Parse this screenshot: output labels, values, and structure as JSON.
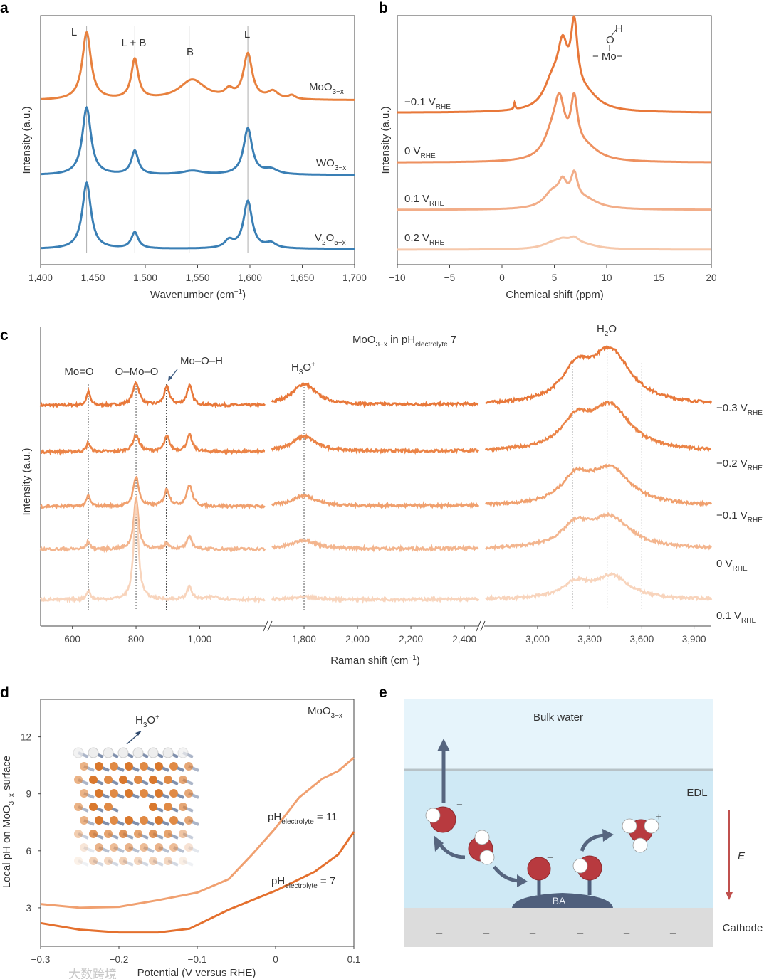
{
  "panels": {
    "a": "a",
    "b": "b",
    "c": "c",
    "d": "d",
    "e": "e"
  },
  "watermark": "大数跨境",
  "chart_data": [
    {
      "type": "line",
      "panel": "a",
      "xlabel": {
        "main": "Wavenumber (cm",
        "sup": "−1",
        "tail": ")"
      },
      "ylabel": "Intensity (a.u.)",
      "xlim": [
        1400,
        1700
      ],
      "xticks": [
        1400,
        1450,
        1500,
        1550,
        1600,
        1650,
        1700
      ],
      "xtick_labels": [
        "1,400",
        "1,450",
        "1,500",
        "1,550",
        "1,600",
        "1,650",
        "1,700"
      ],
      "guides": [
        1444,
        1490,
        1542,
        1598
      ],
      "peak_labels": [
        {
          "text": "L",
          "x": 1440
        },
        {
          "text": "L + B",
          "x": 1490
        },
        {
          "text": "B",
          "x": 1545
        },
        {
          "text": "L",
          "x": 1598
        }
      ],
      "series": [
        {
          "name": "MoO3-x",
          "label": {
            "main": "MoO",
            "sub": "3−x"
          },
          "color": "#e8813e",
          "baseline": 6.6,
          "peaks": [
            [
              1444,
              2.7,
              5
            ],
            [
              1490,
              1.6,
              4
            ],
            [
              1545,
              0.8,
              15
            ],
            [
              1580,
              0.3,
              5
            ],
            [
              1598,
              1.8,
              5
            ],
            [
              1622,
              0.3,
              6
            ],
            [
              1640,
              0.15,
              4
            ]
          ]
        },
        {
          "name": "WO3-x",
          "label": {
            "main": "WO",
            "sub": "3−x"
          },
          "color": "#3a7fb5",
          "baseline": 3.6,
          "peaks": [
            [
              1444,
              2.7,
              5
            ],
            [
              1490,
              0.95,
              4
            ],
            [
              1545,
              0.15,
              12
            ],
            [
              1598,
              1.85,
              5
            ],
            [
              1620,
              0.2,
              8
            ]
          ]
        },
        {
          "name": "V2O5-x",
          "label": {
            "main": "V",
            "sub1": "2",
            "main2": "O",
            "sub": "5−x"
          },
          "color": "#3a7fb5",
          "baseline": 0.63,
          "peaks": [
            [
              1444,
              2.65,
              5
            ],
            [
              1490,
              0.65,
              4
            ],
            [
              1580,
              0.3,
              5
            ],
            [
              1598,
              1.9,
              5
            ],
            [
              1620,
              0.2,
              6
            ]
          ]
        }
      ]
    },
    {
      "type": "line",
      "panel": "b",
      "xlabel": "Chemical shift (ppm)",
      "ylabel": "Intensity (a.u.)",
      "xlim": [
        -10,
        20
      ],
      "xticks": [
        -10,
        -5,
        0,
        5,
        10,
        15,
        20
      ],
      "xtick_labels": [
        "−10",
        "−5",
        "0",
        "5",
        "10",
        "15",
        "20"
      ],
      "inset": {
        "h": "H",
        "o": "O",
        "mo": "− Mo−"
      },
      "series": [
        {
          "name": "-0.1 V_RHE",
          "label": {
            "main": "−0.1 V",
            "sub": "RHE"
          },
          "color": "#e8783a",
          "baseline": 6.1,
          "peaks": [
            [
              5.8,
              2.1,
              0.6
            ],
            [
              6.9,
              2.8,
              0.4
            ],
            [
              4.8,
              1.0,
              1.0
            ],
            [
              8,
              0.6,
              1.5
            ],
            [
              1.2,
              0.25,
              0.08
            ]
          ]
        },
        {
          "name": "0 V_RHE",
          "label": {
            "main": "0 V",
            "sub": "RHE"
          },
          "color": "#ee9160",
          "baseline": 4.1,
          "peaks": [
            [
              5.5,
              1.9,
              0.6
            ],
            [
              6.9,
              2.0,
              0.4
            ],
            [
              4.8,
              0.9,
              1.0
            ],
            [
              8,
              0.5,
              1.5
            ]
          ]
        },
        {
          "name": "0.1 V_RHE",
          "label": {
            "main": "0.1 V",
            "sub": "RHE"
          },
          "color": "#f2ad88",
          "baseline": 2.2,
          "peaks": [
            [
              5.8,
              0.8,
              0.5
            ],
            [
              6.9,
              1.1,
              0.4
            ],
            [
              4.8,
              0.6,
              1.0
            ],
            [
              8,
              0.35,
              1.5
            ]
          ]
        },
        {
          "name": "0.2 V_RHE",
          "label": {
            "main": "0.2 V",
            "sub": "RHE"
          },
          "color": "#f6c8ab",
          "baseline": 0.6,
          "peaks": [
            [
              5.8,
              0.25,
              0.8
            ],
            [
              6.9,
              0.3,
              0.6
            ],
            [
              4.8,
              0.2,
              1.2
            ],
            [
              8,
              0.15,
              1.5
            ]
          ]
        }
      ]
    },
    {
      "type": "line",
      "panel": "c",
      "title": {
        "main": "MoO",
        "sub": "3−x",
        "mid": " in pH",
        "sub2": "electrolyte",
        "tail": " 7"
      },
      "xlabel": {
        "main": "Raman shift (cm",
        "sup": "−1",
        "tail": ")"
      },
      "ylabel": "Intensity (a.u.)",
      "segments": [
        {
          "range": [
            500,
            1205
          ],
          "ticks": [
            600,
            800,
            1000
          ],
          "tick_labels": [
            "600",
            "800",
            "1,000"
          ]
        },
        {
          "range": [
            1680,
            2453
          ],
          "ticks": [
            1800,
            2000,
            2200,
            2400
          ],
          "tick_labels": [
            "1,800",
            "2,000",
            "2,200",
            "2,400"
          ]
        },
        {
          "range": [
            2701,
            4000
          ],
          "ticks": [
            3000,
            3300,
            3600,
            3900
          ],
          "tick_labels": [
            "3,000",
            "3,300",
            "3,600",
            "3,900"
          ]
        }
      ],
      "guides": [
        650,
        800,
        895,
        1800,
        3200,
        3400,
        3600
      ],
      "peak_labels": {
        "mo_o": "Mo=O",
        "o_mo_o": "O–Mo–O",
        "mo_o_h": "Mo–O–H",
        "h3o": {
          "main": "H",
          "sub": "3",
          "tail": "O",
          "sup": "+"
        },
        "h2o": {
          "main": "H",
          "sub": "2",
          "tail": "O"
        }
      },
      "series": [
        {
          "name": "-0.3 V_RHE",
          "label": {
            "main": "−0.3 V",
            "sub": "RHE"
          },
          "color": "#e8783a",
          "baseline": 7.38,
          "peaks": [
            [
              650,
              0.45,
              7
            ],
            [
              800,
              0.75,
              12
            ],
            [
              897,
              0.6,
              10
            ],
            [
              968,
              0.65,
              10
            ],
            [
              1800,
              0.7,
              55
            ],
            [
              3220,
              1.0,
              100
            ],
            [
              3420,
              1.75,
              140
            ]
          ]
        },
        {
          "name": "-0.2 V_RHE",
          "label": {
            "main": "−0.2 V",
            "sub": "RHE"
          },
          "color": "#eb8447",
          "baseline": 5.83,
          "peaks": [
            [
              650,
              0.3,
              7
            ],
            [
              800,
              0.55,
              12
            ],
            [
              897,
              0.5,
              10
            ],
            [
              968,
              0.55,
              10
            ],
            [
              1800,
              0.5,
              55
            ],
            [
              3220,
              0.9,
              100
            ],
            [
              3420,
              1.45,
              140
            ]
          ]
        },
        {
          "name": "-0.1 V_RHE",
          "label": {
            "main": "−0.1 V",
            "sub": "RHE"
          },
          "color": "#f0a06e",
          "baseline": 4.0,
          "peaks": [
            [
              650,
              0.35,
              7
            ],
            [
              800,
              1.0,
              10
            ],
            [
              897,
              0.55,
              10
            ],
            [
              968,
              0.7,
              11
            ],
            [
              1800,
              0.35,
              55
            ],
            [
              3220,
              0.85,
              100
            ],
            [
              3420,
              1.2,
              140
            ]
          ]
        },
        {
          "name": "0 V_RHE",
          "label": {
            "main": "0 V",
            "sub": "RHE"
          },
          "color": "#f3b58e",
          "baseline": 2.57,
          "peaks": [
            [
              650,
              0.25,
              7
            ],
            [
              800,
              1.7,
              9
            ],
            [
              897,
              0.2,
              8
            ],
            [
              968,
              0.4,
              10
            ],
            [
              1800,
              0.3,
              55
            ],
            [
              3220,
              0.7,
              100
            ],
            [
              3420,
              1.0,
              140
            ]
          ]
        },
        {
          "name": "0.1 V_RHE",
          "label": {
            "main": "0.1 V",
            "sub": "RHE"
          },
          "color": "#f8d4bc",
          "baseline": 0.88,
          "peaks": [
            [
              650,
              0.3,
              7
            ],
            [
              800,
              3.2,
              9
            ],
            [
              968,
              0.45,
              9
            ],
            [
              1045,
              0.1,
              20
            ],
            [
              1800,
              0.08,
              55
            ],
            [
              3220,
              0.5,
              100
            ],
            [
              3430,
              0.75,
              120
            ]
          ]
        }
      ]
    },
    {
      "type": "line",
      "panel": "d",
      "xlabel": "Potential (V versus RHE)",
      "ylabel": {
        "main": "Local pH on MoO",
        "sub": "3−x",
        "tail": " surface"
      },
      "xlim": [
        -0.3,
        0.1
      ],
      "ylim": [
        1,
        14
      ],
      "xticks": [
        -0.3,
        -0.2,
        -0.1,
        0,
        0.1
      ],
      "xtick_labels": [
        "−0.3",
        "−0.2",
        "−0.1",
        "0",
        "0.1"
      ],
      "yticks": [
        3,
        6,
        9,
        12
      ],
      "ytick_labels": [
        "3",
        "6",
        "9",
        "12"
      ],
      "annotation": {
        "main": "MoO",
        "sub": "3−x"
      },
      "inset_label": {
        "main": "H",
        "sub": "3",
        "tail": "O",
        "sup": "+"
      },
      "series": [
        {
          "name": "pH_electrolyte = 11",
          "label": {
            "main": "pH",
            "sub": "electrolyte",
            "tail": " = 11"
          },
          "color": "#f0a070",
          "x": [
            -0.3,
            -0.25,
            -0.2,
            -0.15,
            -0.1,
            -0.06,
            -0.03,
            0,
            0.03,
            0.06,
            0.08,
            0.1
          ],
          "y": [
            3.2,
            3.0,
            3.05,
            3.4,
            3.8,
            4.5,
            5.8,
            7.2,
            8.8,
            9.8,
            10.2,
            10.9
          ]
        },
        {
          "name": "pH_electrolyte = 7",
          "label": {
            "main": "pH",
            "sub": "electrolyte",
            "tail": " = 7"
          },
          "color": "#e4702e",
          "x": [
            -0.3,
            -0.25,
            -0.2,
            -0.15,
            -0.11,
            -0.06,
            0,
            0.05,
            0.08,
            0.1
          ],
          "y": [
            2.2,
            1.85,
            1.7,
            1.7,
            1.9,
            2.9,
            3.9,
            4.9,
            5.8,
            7.0
          ]
        }
      ]
    }
  ],
  "diagram_e": {
    "bulk_water": "Bulk water",
    "edl": "EDL",
    "cathode": "Cathode",
    "field": "E",
    "ba": "BA",
    "minus": "−",
    "plus": "+",
    "surface_charge": "–"
  }
}
